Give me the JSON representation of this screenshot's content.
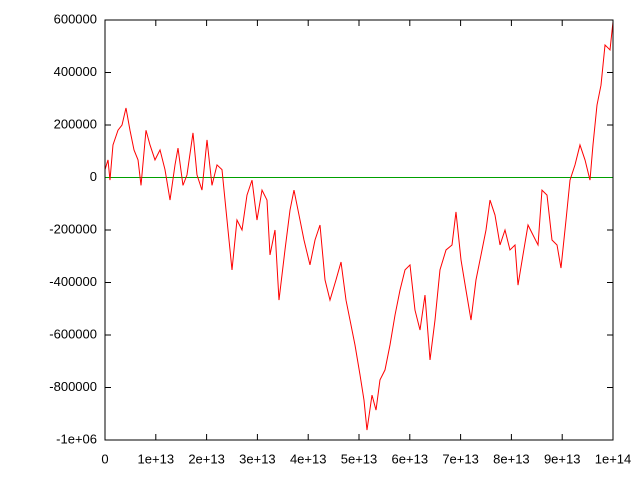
{
  "chart_data": {
    "type": "line",
    "xlim": [
      0,
      100000000000000.0
    ],
    "ylim": [
      -1000000,
      600000
    ],
    "xticks": [
      0,
      {
        "value": 10000000000000.0,
        "label": "1e+13"
      },
      {
        "value": 20000000000000.0,
        "label": "2e+13"
      },
      {
        "value": 30000000000000.0,
        "label": "3e+13"
      },
      {
        "value": 40000000000000.0,
        "label": "4e+13"
      },
      {
        "value": 50000000000000.0,
        "label": "5e+13"
      },
      {
        "value": 60000000000000.0,
        "label": "6e+13"
      },
      {
        "value": 70000000000000.0,
        "label": "7e+13"
      },
      {
        "value": 80000000000000.0,
        "label": "8e+13"
      },
      {
        "value": 90000000000000.0,
        "label": "9e+13"
      },
      {
        "value": 100000000000000.0,
        "label": "1e+14"
      }
    ],
    "yticks": [
      600000,
      400000,
      200000,
      0,
      -200000,
      -400000,
      -600000,
      -800000,
      {
        "value": -1000000,
        "label": "-1e+06"
      }
    ],
    "grid": false,
    "series": [
      {
        "color": "#ff0000",
        "x": [
          0,
          590000000000.0,
          980000000000.0,
          1570000000000.0,
          2560000000000.0,
          3350000000000.0,
          4130000000000.0,
          4920000000000.0,
          5710000000000.0,
          6500000000000.0,
          7090000000000.0,
          8070000000000.0,
          8860000000000.0,
          9840000000000.0,
          10830000000000.0,
          11810000000000.0,
          12800000000000.0,
          13780000000000.0,
          14370000000000.0,
          15350000000000.0,
          16140000000000.0,
          17320000000000.0,
          18110000000000.0,
          19090000000000.0,
          20080000000000.0,
          21060000000000.0,
          22050000000000.0,
          23030000000000.0,
          23820000000000.0,
          25000000000000.0,
          25980000000000.0,
          26970000000000.0,
          27950000000000.0,
          28940000000000.0,
          29920000000000.0,
          30910000000000.0,
          31890000000000.0,
          32480000000000.0,
          33460000000000.0,
          34250000000000.0,
          35430000000000.0,
          36420000000000.0,
          37200000000000.0,
          38190000000000.0,
          39170000000000.0,
          40350000000000.0,
          41340000000000.0,
          42320000000000.0,
          43310000000000.0,
          44290000000000.0,
          45470000000000.0,
          46460000000000.0,
          47440000000000.0,
          48230000000000.0,
          49210000000000.0,
          50200000000000.0,
          50980000000000.0,
          51570000000000.0,
          52560000000000.0,
          53350000000000.0,
          54130000000000.0,
          55120000000000.0,
          56100000000000.0,
          57090000000000.0,
          58070000000000.0,
          59060000000000.0,
          60040000000000.0,
          61020000000000.0,
          62010000000000.0,
          62990000000000.0,
          63980000000000.0,
          64960000000000.0,
          65940000000000.0,
          67130000000000.0,
          68310000000000.0,
          69090000000000.0,
          70080000000000.0,
          71060000000000.0,
          72050000000000.0,
          73030000000000.0,
          74020000000000.0,
          75000000000000.0,
          75790000000000.0,
          76770000000000.0,
          77760000000000.0,
          78740000000000.0,
          79720000000000.0,
          80710000000000.0,
          81300000000000.0,
          82280000000000.0,
          83270000000000.0,
          84250000000000.0,
          85240000000000.0,
          86020000000000.0,
          87010000000000.0,
          87990000000000.0,
          88980000000000.0,
          89760000000000.0,
          90750000000000.0,
          91540000000000.0,
          92520000000000.0,
          93500000000000.0,
          94490000000000.0,
          95470000000000.0,
          96060000000000.0,
          96850000000000.0,
          97640000000000.0,
          98430000000000.0,
          99410000000000.0,
          100000000000000.0
        ],
        "values": [
          30000,
          67000,
          -10000,
          124000,
          180000,
          200000,
          265000,
          180000,
          105000,
          67000,
          -30000,
          180000,
          124000,
          67000,
          105000,
          30000,
          -86000,
          48000,
          112000,
          -30000,
          10000,
          170000,
          10000,
          -48000,
          143000,
          -30000,
          48000,
          30000,
          -124000,
          -352000,
          -162000,
          -200000,
          -67000,
          -10000,
          -162000,
          -48000,
          -86000,
          -295000,
          -200000,
          -467000,
          -276000,
          -124000,
          -48000,
          -143000,
          -238000,
          -333000,
          -238000,
          -181000,
          -390000,
          -467000,
          -390000,
          -322000,
          -467000,
          -543000,
          -638000,
          -752000,
          -848000,
          -962000,
          -829000,
          -886000,
          -771000,
          -733000,
          -638000,
          -524000,
          -429000,
          -352000,
          -333000,
          -505000,
          -581000,
          -448000,
          -695000,
          -543000,
          -352000,
          -276000,
          -257000,
          -131000,
          -314000,
          -429000,
          -543000,
          -390000,
          -295000,
          -200000,
          -86000,
          -143000,
          -257000,
          -200000,
          -276000,
          -257000,
          -410000,
          -295000,
          -181000,
          -219000,
          -257000,
          -48000,
          -67000,
          -238000,
          -257000,
          -345000,
          -162000,
          -10000,
          48000,
          124000,
          67000,
          -10000,
          124000,
          276000,
          352000,
          505000,
          486000,
          593000
        ]
      },
      {
        "color": "#00a000",
        "x": [
          0,
          100000000000000.0
        ],
        "values": [
          0,
          0
        ]
      }
    ]
  }
}
